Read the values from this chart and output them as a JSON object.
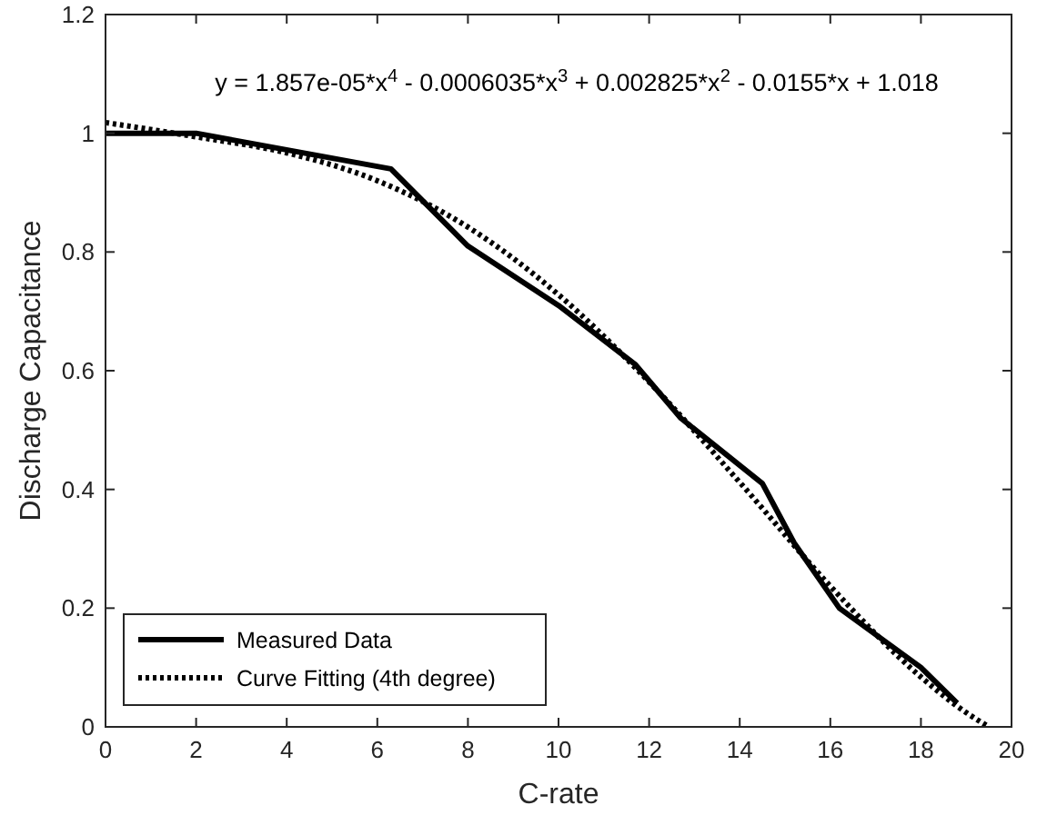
{
  "chart_data": {
    "type": "line",
    "xlabel": "C-rate",
    "ylabel": "Discharge Capacitance",
    "xlim": [
      0,
      20
    ],
    "xticks": [
      0,
      2,
      4,
      6,
      8,
      10,
      12,
      14,
      16,
      18,
      20
    ],
    "ylim": [
      0,
      1.2
    ],
    "yticks": [
      0,
      0.2,
      0.4,
      0.6,
      0.8,
      1,
      1.2
    ],
    "grid": false,
    "legend": "bottom left",
    "annotations": [
      "y = 1.857e-05*x$^{4}$ - 0.0006035*x$^{3}$ + 0.002825*x$^{2}$ - 0.0155*x + 1.018"
    ],
    "series": [
      {
        "name": "Measured Data",
        "color": "#000000",
        "line_style": "solid",
        "x": [
          0,
          2,
          6.3,
          8,
          10,
          11.7,
          12.7,
          14.5,
          15.2,
          16.2,
          18,
          18.8
        ],
        "values": [
          1.0,
          1.0,
          0.94,
          0.81,
          0.71,
          0.61,
          0.52,
          0.41,
          0.31,
          0.2,
          0.1,
          0.04
        ]
      },
      {
        "name": "Curve Fitting (4th degree)",
        "color": "#000000",
        "line_style": "dotted",
        "x": [
          0,
          2,
          4,
          6,
          8,
          10,
          12,
          14,
          16,
          18,
          19,
          19.5
        ],
        "values": [
          1.018,
          0.994,
          0.967,
          0.92,
          0.842,
          0.728,
          0.581,
          0.412,
          0.237,
          0.084,
          0.024,
          0.0
        ]
      }
    ]
  }
}
